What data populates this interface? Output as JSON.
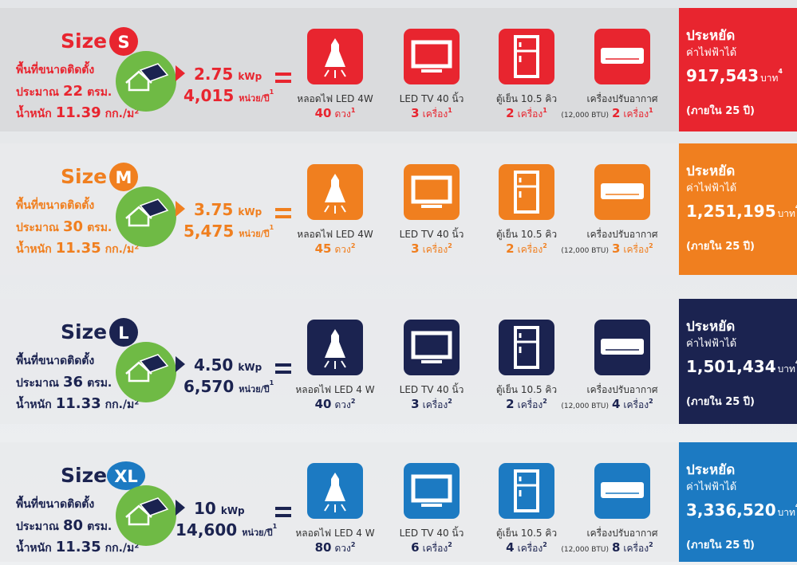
{
  "packages": [
    {
      "size": "S",
      "color": "#e8252f",
      "text_color": "#e8252f",
      "size_label": "Size",
      "area_label": "พื้นที่ขนาดติดตั้ง",
      "area": [
        "ประมาณ",
        "22",
        "ตรม."
      ],
      "weight": [
        "น้ำหนัก",
        "11.39",
        "กก./ม²"
      ],
      "power": "2.75",
      "power_unit": "kWp",
      "energy": "4,015",
      "energy_unit": "หน่วย/ปี",
      "energy_note": "1",
      "appliances": [
        {
          "label": "หลอดไฟ LED 4W",
          "count": [
            "40",
            "ดวง"
          ],
          "note": "1"
        },
        {
          "label": "LED TV 40 นิ้ว",
          "count": [
            "3",
            "เครื่อง"
          ],
          "note": "1"
        },
        {
          "label": "ตู้เย็น 10.5 คิว",
          "count": [
            "2",
            "เครื่อง"
          ],
          "note": "1"
        },
        {
          "label": "เครื่องปรับอากาศ",
          "detail": "(12,000 BTU)",
          "count": [
            "2",
            "เครื่อง"
          ],
          "note": "1"
        }
      ],
      "savings_title": "ประหยัด",
      "savings_label": "ค่าไฟฟ้าได้",
      "savings": "917,543",
      "savings_unit": "บาท",
      "savings_note": "4",
      "period": "(ภายใน 25 ปี)"
    },
    {
      "size": "M",
      "color": "#f07f1f",
      "text_color": "#f07f1f",
      "size_label": "Size",
      "area_label": "พื้นที่ขนาดติดตั้ง",
      "area": [
        "ประมาณ",
        "30",
        "ตรม."
      ],
      "weight": [
        "น้ำหนัก",
        "11.35",
        "กก./ม²"
      ],
      "power": "3.75",
      "power_unit": "kWp",
      "energy": "5,475",
      "energy_unit": "หน่วย/ปี",
      "energy_note": "1",
      "appliances": [
        {
          "label": "หลอดไฟ LED 4W",
          "count": [
            "45",
            "ดวง"
          ],
          "note": "2"
        },
        {
          "label": "LED TV 40 นิ้ว",
          "count": [
            "3",
            "เครื่อง"
          ],
          "note": "2"
        },
        {
          "label": "ตู้เย็น 10.5 คิว",
          "count": [
            "2",
            "เครื่อง"
          ],
          "note": "2"
        },
        {
          "label": "เครื่องปรับอากาศ",
          "detail": "(12,000 BTU)",
          "count": [
            "3",
            "เครื่อง"
          ],
          "note": "2"
        }
      ],
      "savings_title": "ประหยัด",
      "savings_label": "ค่าไฟฟ้าได้",
      "savings": "1,251,195",
      "savings_unit": "บาท",
      "savings_note": "4",
      "period": "(ภายใน 25 ปี)"
    },
    {
      "size": "L",
      "color": "#1b2350",
      "text_color": "#1b2350",
      "size_label": "Size",
      "area_label": "พื้นที่ขนาดติดตั้ง",
      "area": [
        "ประมาณ",
        "36",
        "ตรม."
      ],
      "weight": [
        "น้ำหนัก",
        "11.33",
        "กก./ม²"
      ],
      "power": "4.50",
      "power_unit": "kWp",
      "energy": "6,570",
      "energy_unit": "หน่วย/ปี",
      "energy_note": "1",
      "appliances": [
        {
          "label": "หลอดไฟ LED 4 W",
          "count": [
            "40",
            "ดวง"
          ],
          "note": "2"
        },
        {
          "label": "LED TV 40 นิ้ว",
          "count": [
            "3",
            "เครื่อง"
          ],
          "note": "2"
        },
        {
          "label": "ตู้เย็น 10.5 คิว",
          "count": [
            "2",
            "เครื่อง"
          ],
          "note": "2"
        },
        {
          "label": "เครื่องปรับอากาศ",
          "detail": "(12,000 BTU)",
          "count": [
            "4",
            "เครื่อง"
          ],
          "note": "2"
        }
      ],
      "savings_title": "ประหยัด",
      "savings_label": "ค่าไฟฟ้าได้",
      "savings": "1,501,434",
      "savings_unit": "บาท",
      "savings_note": "4",
      "period": "(ภายใน 25 ปี)"
    },
    {
      "size": "XL",
      "color": "#1c7ac2",
      "text_color": "#1b2350",
      "size_label": "Size",
      "area_label": "พื้นที่ขนาดติดตั้ง",
      "area": [
        "ประมาณ",
        "80",
        "ตรม."
      ],
      "weight": [
        "น้ำหนัก",
        "11.35",
        "กก./ม²"
      ],
      "power": "10",
      "power_unit": "kWp",
      "energy": "14,600",
      "energy_unit": "หน่วย/ปี",
      "energy_note": "1",
      "appliances": [
        {
          "label": "หลอดไฟ LED 4 W",
          "count": [
            "80",
            "ดวง"
          ],
          "note": "2"
        },
        {
          "label": "LED TV 40 นิ้ว",
          "count": [
            "6",
            "เครื่อง"
          ],
          "note": "2"
        },
        {
          "label": "ตู้เย็น 10.5 คิว",
          "count": [
            "4",
            "เครื่อง"
          ],
          "note": "2"
        },
        {
          "label": "เครื่องปรับอากาศ",
          "detail": "(12,000 BTU)",
          "count": [
            "8",
            "เครื่อง"
          ],
          "note": "2"
        }
      ],
      "savings_title": "ประหยัด",
      "savings_label": "ค่าไฟฟ้าได้",
      "savings": "3,336,520",
      "savings_unit": "บาท",
      "savings_note": "4",
      "period": "(ภายใน 25 ปี)"
    }
  ]
}
